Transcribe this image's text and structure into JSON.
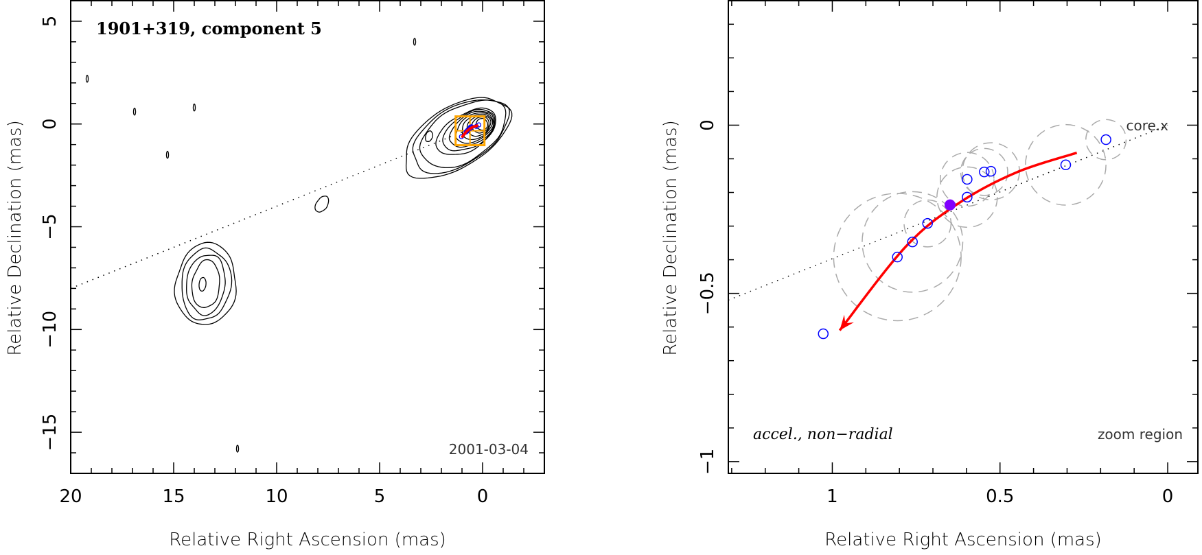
{
  "chart_data": [
    {
      "type": "scatter",
      "subtype": "contour-map",
      "title": "1901+319, component 5",
      "annotation": "2001-03-04",
      "xlabel": "Relative Right Ascension (mas)",
      "ylabel": "Relative Declination (mas)",
      "xlim": [
        20,
        -3
      ],
      "ylim": [
        -17,
        6
      ],
      "x_ticks": [
        20,
        15,
        10,
        5,
        0
      ],
      "y_ticks": [
        5,
        0,
        -5,
        -10,
        -15
      ],
      "x_tick_labels": [
        "20",
        "15",
        "10",
        "5",
        "0"
      ],
      "y_tick_labels": [
        "5",
        "0",
        "−5",
        "−10",
        "−15"
      ],
      "jet_axis_line": {
        "from": [
          20,
          -8
        ],
        "to": [
          0,
          0
        ],
        "style": "dotted"
      },
      "contour_groups": [
        {
          "name": "core",
          "center": [
            0,
            0
          ],
          "levels": 11
        },
        {
          "name": "outer-jet",
          "center": [
            13.6,
            -7.8
          ],
          "levels": 5
        },
        {
          "name": "knot",
          "center": [
            7.8,
            -3.9
          ],
          "levels": 1
        },
        {
          "name": "small-blob",
          "center": [
            2.6,
            -0.6
          ],
          "levels": 1
        }
      ],
      "zoom_box": {
        "ra": [
          1.31,
          -0.09
        ],
        "dec": [
          0.37,
          -1.03
        ],
        "color": "#ffa500"
      }
    },
    {
      "type": "scatter",
      "annotation_left": "accel., non−radial",
      "annotation_right": "zoom region",
      "core_label": "core.x",
      "xlabel": "Relative Right Ascension (mas)",
      "ylabel": "Relative Declination (mas)",
      "xlim": [
        1.31,
        -0.09
      ],
      "ylim": [
        -1.035,
        0.37
      ],
      "x_ticks": [
        1,
        0.5,
        0
      ],
      "y_ticks": [
        0,
        -0.5,
        -1
      ],
      "x_tick_labels": [
        "1",
        "0.5",
        "0"
      ],
      "y_tick_labels": [
        "0",
        "−0.5",
        "−1"
      ],
      "jet_axis_line": {
        "from": [
          1.31,
          -0.52
        ],
        "to": [
          0,
          0
        ],
        "style": "dotted"
      },
      "series": [
        {
          "name": "component positions",
          "marker": "open-circle",
          "color": "#0000ff",
          "points": [
            {
              "ra": 0.184,
              "dec": -0.043,
              "err": 0.06
            },
            {
              "ra": 0.304,
              "dec": -0.118,
              "err": 0.12
            },
            {
              "ra": 0.527,
              "dec": -0.137,
              "err": 0.085
            },
            {
              "ra": 0.547,
              "dec": -0.139,
              "err": 0.07
            },
            {
              "ra": 0.598,
              "dec": -0.161,
              "err": 0.08
            },
            {
              "ra": 0.598,
              "dec": -0.214,
              "err": 0.09
            },
            {
              "ra": 0.716,
              "dec": -0.292,
              "err": 0.07
            },
            {
              "ra": 0.761,
              "dec": -0.347,
              "err": 0.15
            },
            {
              "ra": 0.806,
              "dec": -0.392,
              "err": 0.19
            },
            {
              "ra": 1.027,
              "dec": -0.62,
              "err": 0
            }
          ]
        },
        {
          "name": "reference epoch",
          "marker": "filled-circle",
          "color": "#8000ff",
          "points": [
            {
              "ra": 0.649,
              "dec": -0.237
            }
          ]
        }
      ],
      "trajectory": {
        "color": "#ff0000",
        "points": [
          [
            0.271,
            -0.082
          ],
          [
            0.45,
            -0.14
          ],
          [
            0.62,
            -0.23
          ],
          [
            0.78,
            -0.36
          ],
          [
            0.978,
            -0.61
          ]
        ],
        "arrow": "end"
      },
      "core": {
        "ra": 0,
        "dec": 0
      }
    }
  ]
}
